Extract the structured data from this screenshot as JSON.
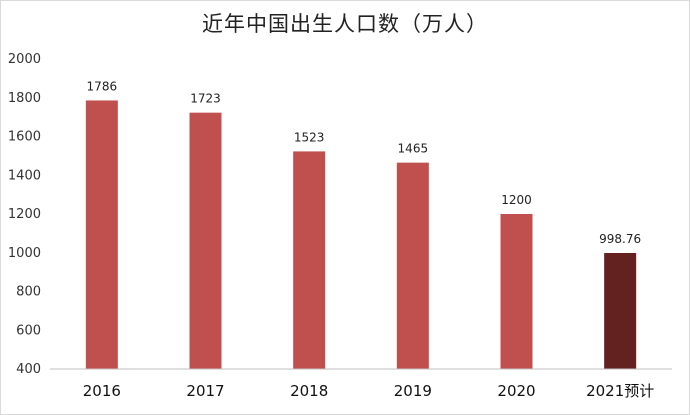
{
  "chart_data": {
    "type": "bar",
    "title": "近年中国出生人口数（万人）",
    "categories": [
      "2016",
      "2017",
      "2018",
      "2019",
      "2020",
      "2021预计"
    ],
    "values": [
      1786,
      1723,
      1523,
      1465,
      1200,
      998.76
    ],
    "data_labels": [
      "1786",
      "1723",
      "1523",
      "1465",
      "1200",
      "998.76"
    ],
    "ylim": [
      400,
      2000
    ],
    "yticks": [
      400,
      600,
      800,
      1000,
      1200,
      1400,
      1600,
      1800,
      2000
    ],
    "grid": false,
    "legend": "none",
    "colors": {
      "bar": "#c0504d",
      "bar_highlight": "#632120",
      "axis": "#bfbfbf"
    },
    "highlight_index": 5
  }
}
